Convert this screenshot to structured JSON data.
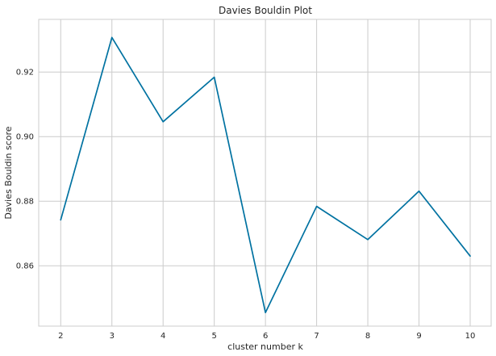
{
  "chart_data": {
    "type": "line",
    "title": "Davies Bouldin Plot",
    "xlabel": "cluster number k",
    "ylabel": "Davies Bouldin score",
    "x": [
      2,
      3,
      4,
      5,
      6,
      7,
      8,
      9,
      10
    ],
    "series": [
      {
        "values": [
          0.8742,
          0.9307,
          0.9046,
          0.9184,
          0.8455,
          0.8784,
          0.8681,
          0.8831,
          0.863
        ],
        "color": "#0072a1"
      }
    ],
    "xticks": [
      2,
      3,
      4,
      5,
      6,
      7,
      8,
      9,
      10
    ],
    "xtick_labels": [
      "2",
      "3",
      "4",
      "5",
      "6",
      "7",
      "8",
      "9",
      "10"
    ],
    "yticks": [
      0.86,
      0.88,
      0.9,
      0.92
    ],
    "ytick_labels": [
      "0.86",
      "0.88",
      "0.90",
      "0.92"
    ],
    "xlim": [
      1.57,
      10.41
    ],
    "ylim": [
      0.8413,
      0.9363
    ],
    "grid": true,
    "legend": "none",
    "colors": {
      "grid": "#cccccc",
      "background": "#ffffff",
      "text": "#262626"
    }
  }
}
